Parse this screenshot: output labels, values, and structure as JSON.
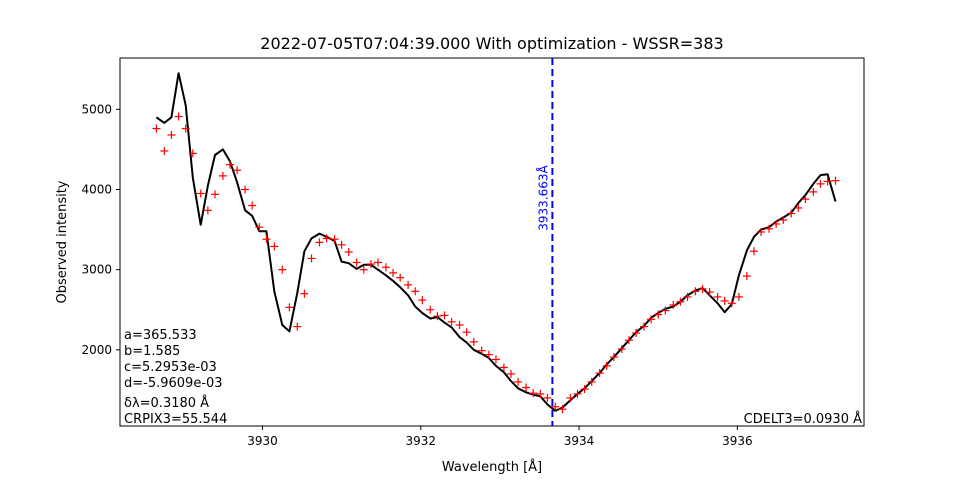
{
  "chart_data": {
    "type": "line",
    "title": "2022-07-05T07:04:39.000 With optimization - WSSR=383",
    "xlabel": "Wavelength [Å]",
    "ylabel": "Observed intensity",
    "xlim": [
      3928.2,
      3937.6
    ],
    "ylim": [
      1050,
      5640
    ],
    "xticks": [
      3930,
      3932,
      3934,
      3936
    ],
    "yticks": [
      2000,
      3000,
      4000,
      5000
    ],
    "xtick_labels": [
      "3930",
      "3932",
      "3934",
      "3936"
    ],
    "ytick_labels": [
      "2000",
      "3000",
      "4000",
      "5000"
    ],
    "grid": false,
    "colors": {
      "observed": "#ff0000",
      "fit": "#000000",
      "marker": "#0000ff"
    },
    "vline": {
      "x": 3933.663,
      "label": "3933.663Å",
      "style": "dashed"
    },
    "annotations_left": [
      "a=365.533",
      "b=1.585",
      "c=5.2953e-03",
      "d=-5.9609e-03",
      "δλ=0.3180 Å",
      "CRPIX3=55.544"
    ],
    "annotation_right": "CDELT3=0.0930 Å",
    "series": [
      {
        "kind": "scatter-plus",
        "x": [
          3928.66,
          3928.76,
          3928.85,
          3928.94,
          3929.03,
          3929.12,
          3929.22,
          3929.31,
          3929.4,
          3929.5,
          3929.59,
          3929.68,
          3929.78,
          3929.87,
          3929.96,
          3930.05,
          3930.15,
          3930.25,
          3930.34,
          3930.44,
          3930.53,
          3930.62,
          3930.72,
          3930.81,
          3930.91,
          3931.0,
          3931.09,
          3931.19,
          3931.28,
          3931.37,
          3931.46,
          3931.56,
          3931.65,
          3931.74,
          3931.84,
          3931.93,
          3932.02,
          3932.12,
          3932.21,
          3932.3,
          3932.39,
          3932.49,
          3932.58,
          3932.67,
          3932.77,
          3932.86,
          3932.95,
          3933.05,
          3933.14,
          3933.23,
          3933.33,
          3933.42,
          3933.51,
          3933.6,
          3933.7,
          3933.79,
          3933.89,
          3933.98,
          3934.07,
          3934.16,
          3934.26,
          3934.35,
          3934.44,
          3934.54,
          3934.63,
          3934.72,
          3934.82,
          3934.91,
          3935.0,
          3935.09,
          3935.19,
          3935.28,
          3935.37,
          3935.47,
          3935.56,
          3935.65,
          3935.75,
          3935.84,
          3935.93,
          3936.02,
          3936.12,
          3936.21,
          3936.3,
          3936.4,
          3936.49,
          3936.58,
          3936.68,
          3936.77,
          3936.86,
          3936.96,
          3937.05,
          3937.14,
          3937.24
        ],
        "y": [
          4760,
          4480,
          4680,
          4910,
          4760,
          4450,
          3950,
          3740,
          3940,
          4170,
          4310,
          4240,
          4000,
          3800,
          3530,
          3380,
          3290,
          3000,
          2530,
          2290,
          2700,
          3140,
          3340,
          3390,
          3380,
          3310,
          3220,
          3090,
          3000,
          3070,
          3090,
          3030,
          2960,
          2900,
          2810,
          2730,
          2620,
          2500,
          2420,
          2430,
          2350,
          2310,
          2220,
          2100,
          1990,
          1940,
          1880,
          1780,
          1700,
          1600,
          1530,
          1460,
          1450,
          1400,
          1290,
          1260,
          1400,
          1450,
          1510,
          1600,
          1710,
          1800,
          1910,
          2010,
          2120,
          2210,
          2290,
          2380,
          2440,
          2490,
          2560,
          2600,
          2660,
          2730,
          2760,
          2720,
          2660,
          2610,
          2580,
          2660,
          2920,
          3230,
          3470,
          3510,
          3570,
          3620,
          3700,
          3770,
          3880,
          3970,
          4070,
          4100,
          4110
        ]
      },
      {
        "kind": "line",
        "x": [
          3928.66,
          3928.76,
          3928.85,
          3928.94,
          3929.03,
          3929.12,
          3929.22,
          3929.31,
          3929.4,
          3929.5,
          3929.59,
          3929.68,
          3929.78,
          3929.87,
          3929.96,
          3930.05,
          3930.15,
          3930.25,
          3930.34,
          3930.44,
          3930.53,
          3930.62,
          3930.72,
          3930.81,
          3930.91,
          3931.0,
          3931.09,
          3931.19,
          3931.28,
          3931.37,
          3931.46,
          3931.56,
          3931.65,
          3931.74,
          3931.84,
          3931.93,
          3932.02,
          3932.12,
          3932.21,
          3932.3,
          3932.39,
          3932.49,
          3932.58,
          3932.67,
          3932.77,
          3932.86,
          3932.95,
          3933.05,
          3933.14,
          3933.23,
          3933.33,
          3933.42,
          3933.51,
          3933.6,
          3933.7,
          3933.79,
          3933.89,
          3933.98,
          3934.07,
          3934.16,
          3934.26,
          3934.35,
          3934.44,
          3934.54,
          3934.63,
          3934.72,
          3934.82,
          3934.91,
          3935.0,
          3935.09,
          3935.19,
          3935.28,
          3935.37,
          3935.47,
          3935.56,
          3935.65,
          3935.75,
          3935.84,
          3935.93,
          3936.02,
          3936.12,
          3936.21,
          3936.3,
          3936.4,
          3936.49,
          3936.58,
          3936.68,
          3936.77,
          3936.86,
          3936.96,
          3937.05,
          3937.14,
          3937.24
        ],
        "y": [
          4900,
          4830,
          4900,
          5450,
          5050,
          4150,
          3560,
          4050,
          4430,
          4500,
          4350,
          4090,
          3740,
          3670,
          3480,
          3480,
          2730,
          2310,
          2230,
          2710,
          3230,
          3390,
          3450,
          3410,
          3360,
          3100,
          3080,
          3010,
          3060,
          3060,
          3000,
          2930,
          2860,
          2780,
          2680,
          2540,
          2460,
          2390,
          2410,
          2340,
          2280,
          2160,
          2090,
          2000,
          1950,
          1900,
          1800,
          1720,
          1610,
          1520,
          1470,
          1440,
          1420,
          1320,
          1240,
          1280,
          1370,
          1450,
          1520,
          1610,
          1710,
          1820,
          1910,
          2020,
          2120,
          2220,
          2300,
          2400,
          2460,
          2510,
          2540,
          2600,
          2680,
          2740,
          2770,
          2680,
          2580,
          2470,
          2570,
          2930,
          3240,
          3410,
          3500,
          3530,
          3600,
          3650,
          3710,
          3830,
          3930,
          4070,
          4180,
          4190,
          3850
        ]
      }
    ]
  }
}
